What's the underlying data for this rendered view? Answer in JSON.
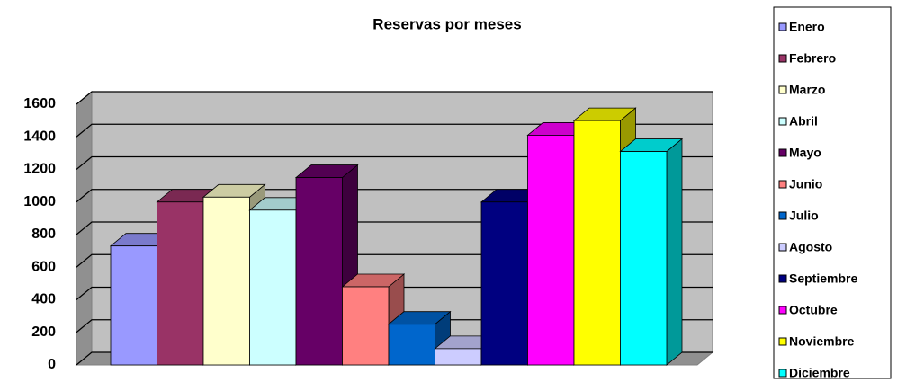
{
  "chart_data": {
    "type": "bar3d",
    "title": "Reservas por meses",
    "categories": [
      "Enero",
      "Febrero",
      "Marzo",
      "Abril",
      "Mayo",
      "Junio",
      "Julio",
      "Agosto",
      "Septiembre",
      "Octubre",
      "Noviembre",
      "Diciembre"
    ],
    "values": [
      730,
      1000,
      1030,
      950,
      1150,
      480,
      250,
      100,
      1000,
      1410,
      1500,
      1310
    ],
    "colors": [
      "#9999ff",
      "#993366",
      "#ffffcc",
      "#ccffff",
      "#660066",
      "#ff8080",
      "#0066cc",
      "#ccccff",
      "#000080",
      "#ff00ff",
      "#ffff00",
      "#00ffff"
    ],
    "ylim": [
      0,
      1600
    ],
    "yticks": [
      0,
      200,
      400,
      600,
      800,
      1000,
      1200,
      1400,
      1600
    ],
    "grid": true,
    "legend": "right"
  }
}
